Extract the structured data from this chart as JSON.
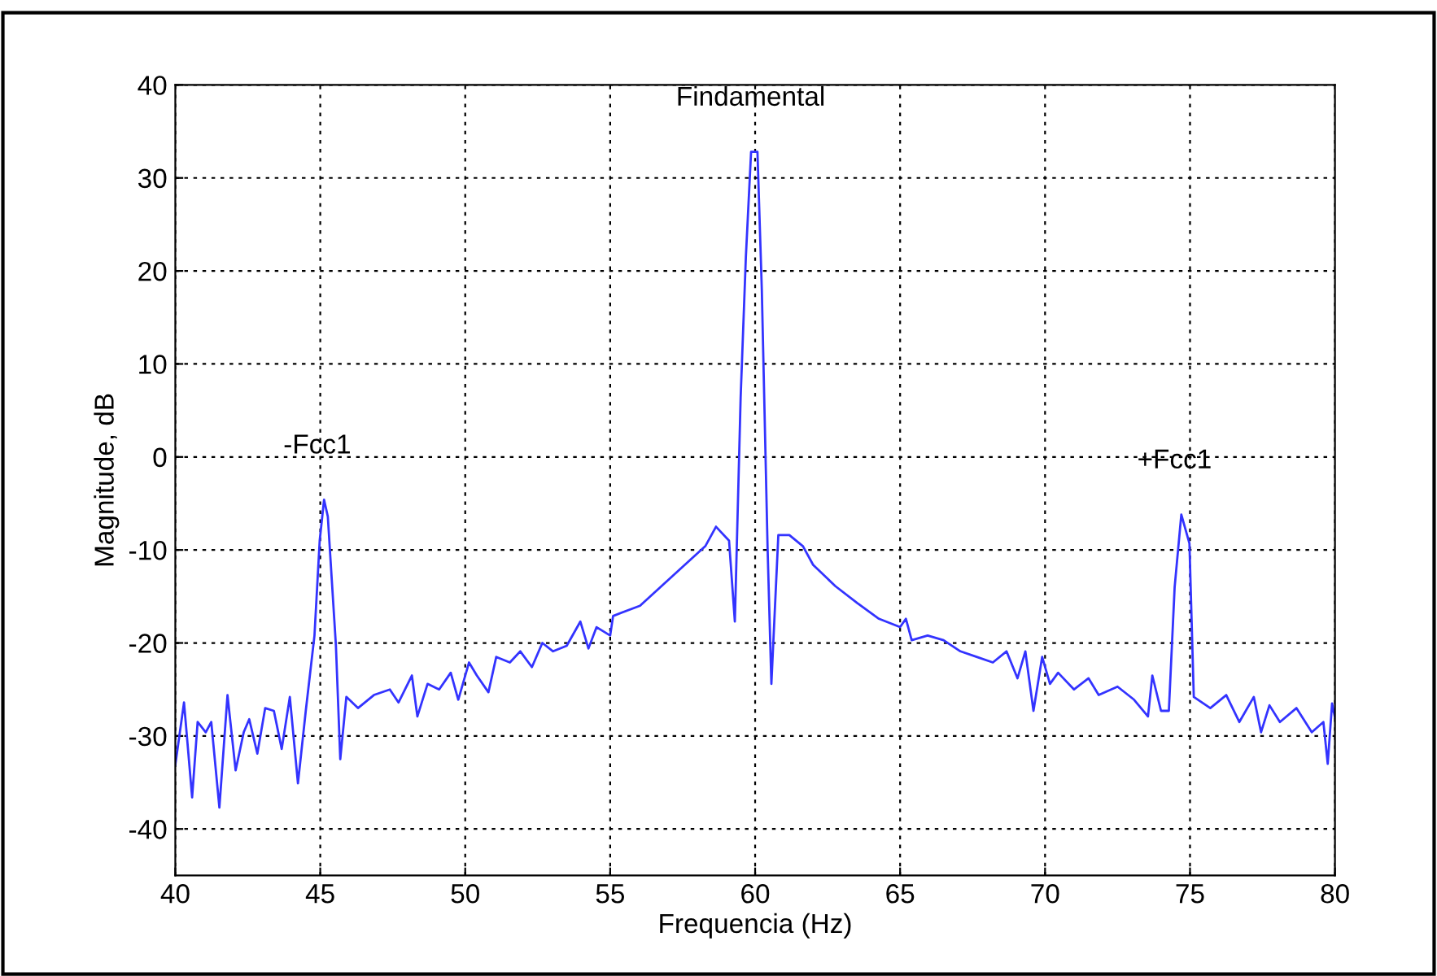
{
  "chart_data": {
    "type": "line",
    "xlabel": "Frequencia (Hz)",
    "ylabel": "Magnitude, dB",
    "xlim": [
      40,
      80
    ],
    "xticks": [
      40,
      45,
      50,
      55,
      60,
      65,
      70,
      75,
      80
    ],
    "ylim": [
      -45,
      40
    ],
    "yticks": [
      -40,
      -30,
      -20,
      -10,
      0,
      10,
      20,
      30,
      40
    ],
    "grid": true,
    "line_style": "solid",
    "series": [
      {
        "color": "#3333ff",
        "x": [
          40.0,
          40.3,
          40.58,
          40.77,
          41.05,
          41.24,
          41.52,
          41.8,
          42.08,
          42.36,
          42.55,
          42.83,
          43.1,
          43.4,
          43.67,
          43.95,
          44.23,
          44.5,
          44.8,
          44.98,
          45.13,
          45.26,
          45.54,
          45.69,
          45.9,
          46.3,
          46.85,
          47.4,
          47.7,
          48.16,
          48.35,
          48.7,
          49.1,
          49.5,
          49.76,
          50.13,
          50.4,
          50.8,
          51.07,
          51.54,
          51.9,
          52.3,
          52.66,
          53.03,
          53.5,
          53.97,
          54.25,
          54.53,
          55.0,
          55.1,
          56.03,
          57.15,
          58.28,
          58.65,
          59.1,
          59.3,
          59.5,
          59.68,
          59.86,
          60.08,
          60.23,
          60.43,
          60.56,
          60.8,
          61.18,
          61.65,
          62.0,
          62.77,
          63.52,
          64.27,
          65.0,
          65.2,
          65.4,
          65.95,
          66.5,
          67.08,
          67.64,
          68.2,
          68.67,
          69.05,
          69.32,
          69.6,
          69.9,
          70.17,
          70.45,
          71.0,
          71.5,
          71.85,
          72.5,
          73.07,
          73.55,
          73.7,
          74.0,
          74.27,
          74.47,
          74.7,
          74.98,
          75.13,
          75.7,
          76.25,
          76.7,
          77.2,
          77.45,
          77.74,
          78.1,
          78.67,
          79.2,
          79.6,
          79.75,
          79.9,
          80.0
        ],
        "values": [
          -33.1,
          -26.4,
          -36.6,
          -28.5,
          -29.6,
          -28.5,
          -37.7,
          -25.6,
          -33.7,
          -29.6,
          -28.2,
          -31.9,
          -27.0,
          -27.3,
          -31.4,
          -25.8,
          -35.1,
          -27.3,
          -19.2,
          -9.0,
          -4.6,
          -6.4,
          -20.3,
          -32.5,
          -25.8,
          -27.0,
          -25.6,
          -25.0,
          -26.4,
          -23.5,
          -27.9,
          -24.4,
          -25.0,
          -23.2,
          -26.1,
          -22.1,
          -23.5,
          -25.3,
          -21.5,
          -22.1,
          -20.9,
          -22.6,
          -20.0,
          -20.9,
          -20.3,
          -17.7,
          -20.6,
          -18.3,
          -19.2,
          -17.1,
          -16.0,
          -12.8,
          -9.6,
          -7.5,
          -9.0,
          -17.7,
          6.4,
          21.5,
          32.8,
          32.8,
          18.0,
          -9.9,
          -24.4,
          -8.4,
          -8.4,
          -9.6,
          -11.6,
          -13.9,
          -15.7,
          -17.4,
          -18.3,
          -17.4,
          -19.7,
          -19.2,
          -19.7,
          -20.9,
          -21.5,
          -22.1,
          -20.9,
          -23.8,
          -20.9,
          -27.3,
          -21.5,
          -24.4,
          -23.2,
          -25.0,
          -23.8,
          -25.6,
          -24.7,
          -26.1,
          -27.9,
          -23.5,
          -27.3,
          -27.3,
          -14.0,
          -6.2,
          -9.3,
          -25.8,
          -27.0,
          -25.6,
          -28.5,
          -25.8,
          -29.6,
          -26.7,
          -28.5,
          -27.0,
          -29.6,
          -28.5,
          -33.0,
          -26.5,
          -28.0
        ]
      }
    ],
    "annotations": [
      {
        "text": "-Fcc1",
        "x": 45.13,
        "y": -4.6
      },
      {
        "text": "Findamental",
        "x": 60.08,
        "y": 32.8
      },
      {
        "text": "+Fcc1",
        "x": 74.7,
        "y": -6.2
      }
    ]
  }
}
